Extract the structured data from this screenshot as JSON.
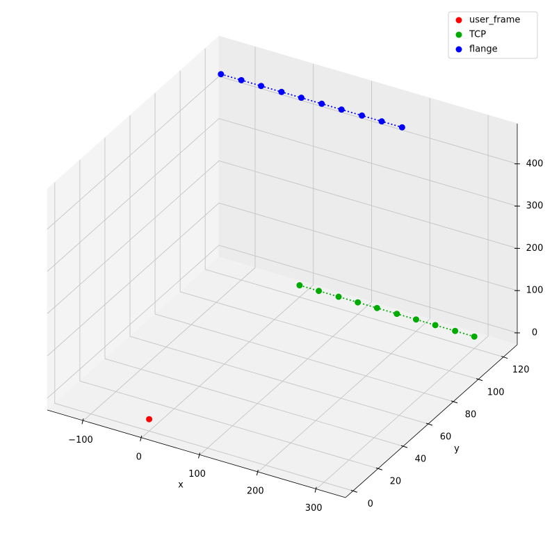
{
  "chart_data": {
    "type": "scatter",
    "xlabel": "x",
    "ylabel": "y",
    "xlim": [
      -162,
      350
    ],
    "ylim": [
      -6,
      131
    ],
    "zlim": [
      -28,
      495
    ],
    "xticks": [
      {
        "value": -100,
        "label": "−100"
      },
      0,
      100,
      200,
      300
    ],
    "yticks": [
      0,
      20,
      40,
      60,
      80,
      100,
      120
    ],
    "zticks": [
      0,
      100,
      200,
      300,
      400
    ],
    "grid": true,
    "legend": "upper right",
    "series": [
      {
        "name": "user_frame",
        "color": "#ff0000",
        "x": [
          0
        ],
        "y": [
          0
        ],
        "z": [
          0
        ]
      },
      {
        "name": "TCP",
        "color": "#00aa00",
        "linestyle": "dotted",
        "x": [
          0,
          33,
          67,
          100,
          133,
          167,
          200,
          233,
          267,
          300
        ],
        "y": [
          120,
          120,
          120,
          120,
          120,
          120,
          120,
          120,
          120,
          120
        ],
        "z": [
          0,
          0,
          0,
          0,
          0,
          0,
          0,
          0,
          0,
          0
        ]
      },
      {
        "name": "flange",
        "color": "#0000ff",
        "linestyle": "dotted",
        "x": [
          -135,
          -100,
          -66,
          -31,
          3,
          38,
          72,
          107,
          141,
          176
        ],
        "y": [
          120,
          120,
          120,
          120,
          120,
          120,
          120,
          120,
          120,
          120
        ],
        "z": [
          445,
          445,
          445,
          445,
          445,
          445,
          445,
          445,
          445,
          445
        ]
      }
    ]
  }
}
